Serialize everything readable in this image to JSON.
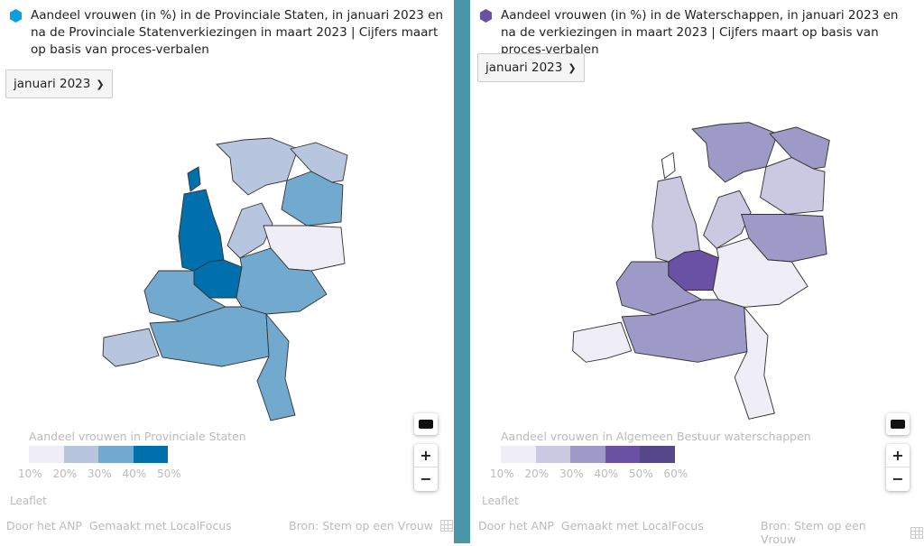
{
  "left": {
    "title": "Aandeel vrouwen (in %) in de Provinciale Staten, in januari 2023 en na de Provinciale Statenverkiezingen in maart 2023 | Cijfers maart op basis van proces-verbalen",
    "icon_color": "#0aa0e0",
    "select_value": "januari 2023",
    "legend_title": "Aandeel vrouwen in Provinciale Staten",
    "legend_colors": [
      "#efedf5",
      "#b8c5de",
      "#72a9cf",
      "#0070ad"
    ],
    "legend_ticks": [
      "10%",
      "20%",
      "30%",
      "40%",
      "50%"
    ],
    "region_colors": {
      "texel": "#0070ad",
      "nh": "#0070ad",
      "fr": "#b8c5de",
      "gr": "#b8c5de",
      "dr": "#72a9cf",
      "ov": "#efedf5",
      "fl": "#b8c5de",
      "ut": "#0070ad",
      "ge": "#72a9cf",
      "zh": "#72a9cf",
      "ze": "#b8c5de",
      "nb": "#72a9cf",
      "li": "#72a9cf"
    }
  },
  "right": {
    "title": "Aandeel vrouwen (in %) in de Waterschappen, in januari 2023 en na de verkiezingen in maart 2023 | Cijfers maart op basis van proces-verbalen",
    "icon_color": "#6a51a3",
    "select_value": "januari 2023",
    "legend_title": "Aandeel vrouwen in Algemeen Bestuur waterschappen",
    "legend_colors": [
      "#efedf5",
      "#cbc9e2",
      "#9e9ac8",
      "#6a51a3",
      "#54478a"
    ],
    "legend_ticks": [
      "10%",
      "20%",
      "30%",
      "40%",
      "50%",
      "60%"
    ],
    "region_colors": {
      "texel": "#ffffff",
      "nh": "#cbc9e2",
      "fr": "#9e9ac8",
      "gr": "#9e9ac8",
      "dr": "#cbc9e2",
      "ov": "#9e9ac8",
      "fl": "#cbc9e2",
      "ut": "#6a51a3",
      "ge": "#efedf5",
      "zh": "#9e9ac8",
      "ze": "#efedf5",
      "nb": "#9e9ac8",
      "li": "#efedf5"
    }
  },
  "controls": {
    "zoom_in": "+",
    "zoom_out": "−"
  },
  "attribution": "Leaflet",
  "footer": {
    "by": "Door het ANP",
    "made": "Gemaakt met LocalFocus",
    "source": "Bron: Stem op een Vrouw"
  }
}
